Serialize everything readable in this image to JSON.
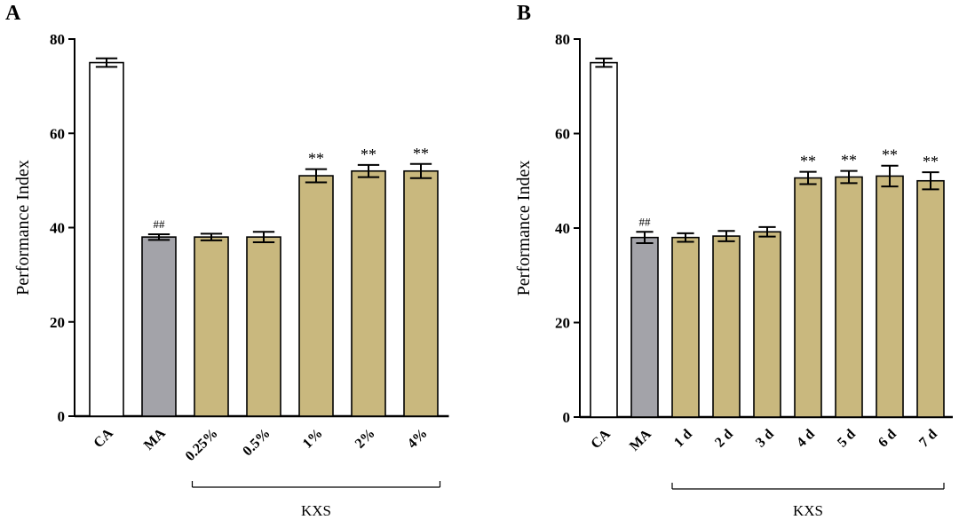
{
  "chart_data": [
    {
      "panel_label": "A",
      "type": "bar",
      "ylabel": "Performance Index",
      "xlabel": "",
      "ylim": [
        0,
        80
      ],
      "yticks": [
        0,
        20,
        40,
        60,
        80
      ],
      "ytick_labels": [
        "0",
        "20",
        "40",
        "60",
        "80"
      ],
      "categories": [
        "CA",
        "MA",
        "0.25%",
        "0.5%",
        "1%",
        "2%",
        "4%"
      ],
      "values": [
        75,
        38,
        38,
        38,
        51,
        52,
        52
      ],
      "errors": [
        0.9,
        0.6,
        0.7,
        1.1,
        1.4,
        1.3,
        1.5
      ],
      "annotations": [
        "",
        "##",
        "",
        "",
        "**",
        "**",
        "**"
      ],
      "group": {
        "label": "KXS",
        "from_category": 2,
        "to_category": 6
      },
      "bar_colors": [
        "#ffffff",
        "#a3a3a9",
        "#c9b87e",
        "#c9b87e",
        "#c9b87e",
        "#c9b87e",
        "#c9b87e"
      ]
    },
    {
      "panel_label": "B",
      "type": "bar",
      "ylabel": "Performance Index",
      "xlabel": "",
      "ylim": [
        0,
        80
      ],
      "yticks": [
        0,
        20,
        40,
        60,
        80
      ],
      "ytick_labels": [
        "0",
        "20",
        "40",
        "60",
        "80"
      ],
      "categories": [
        "CA",
        "MA",
        "1 d",
        "2 d",
        "3 d",
        "4 d",
        "5 d",
        "6 d",
        "7 d"
      ],
      "values": [
        75,
        38,
        38,
        38.3,
        39.2,
        50.6,
        50.8,
        51,
        50
      ],
      "errors": [
        0.9,
        1.2,
        0.9,
        1.1,
        1.0,
        1.3,
        1.3,
        2.2,
        1.8
      ],
      "annotations": [
        "",
        "##",
        "",
        "",
        "",
        "**",
        "**",
        "**",
        "**"
      ],
      "group": {
        "label": "KXS",
        "from_category": 2,
        "to_category": 8
      },
      "bar_colors": [
        "#ffffff",
        "#a3a3a9",
        "#c9b87e",
        "#c9b87e",
        "#c9b87e",
        "#c9b87e",
        "#c9b87e",
        "#c9b87e",
        "#c9b87e"
      ]
    }
  ]
}
